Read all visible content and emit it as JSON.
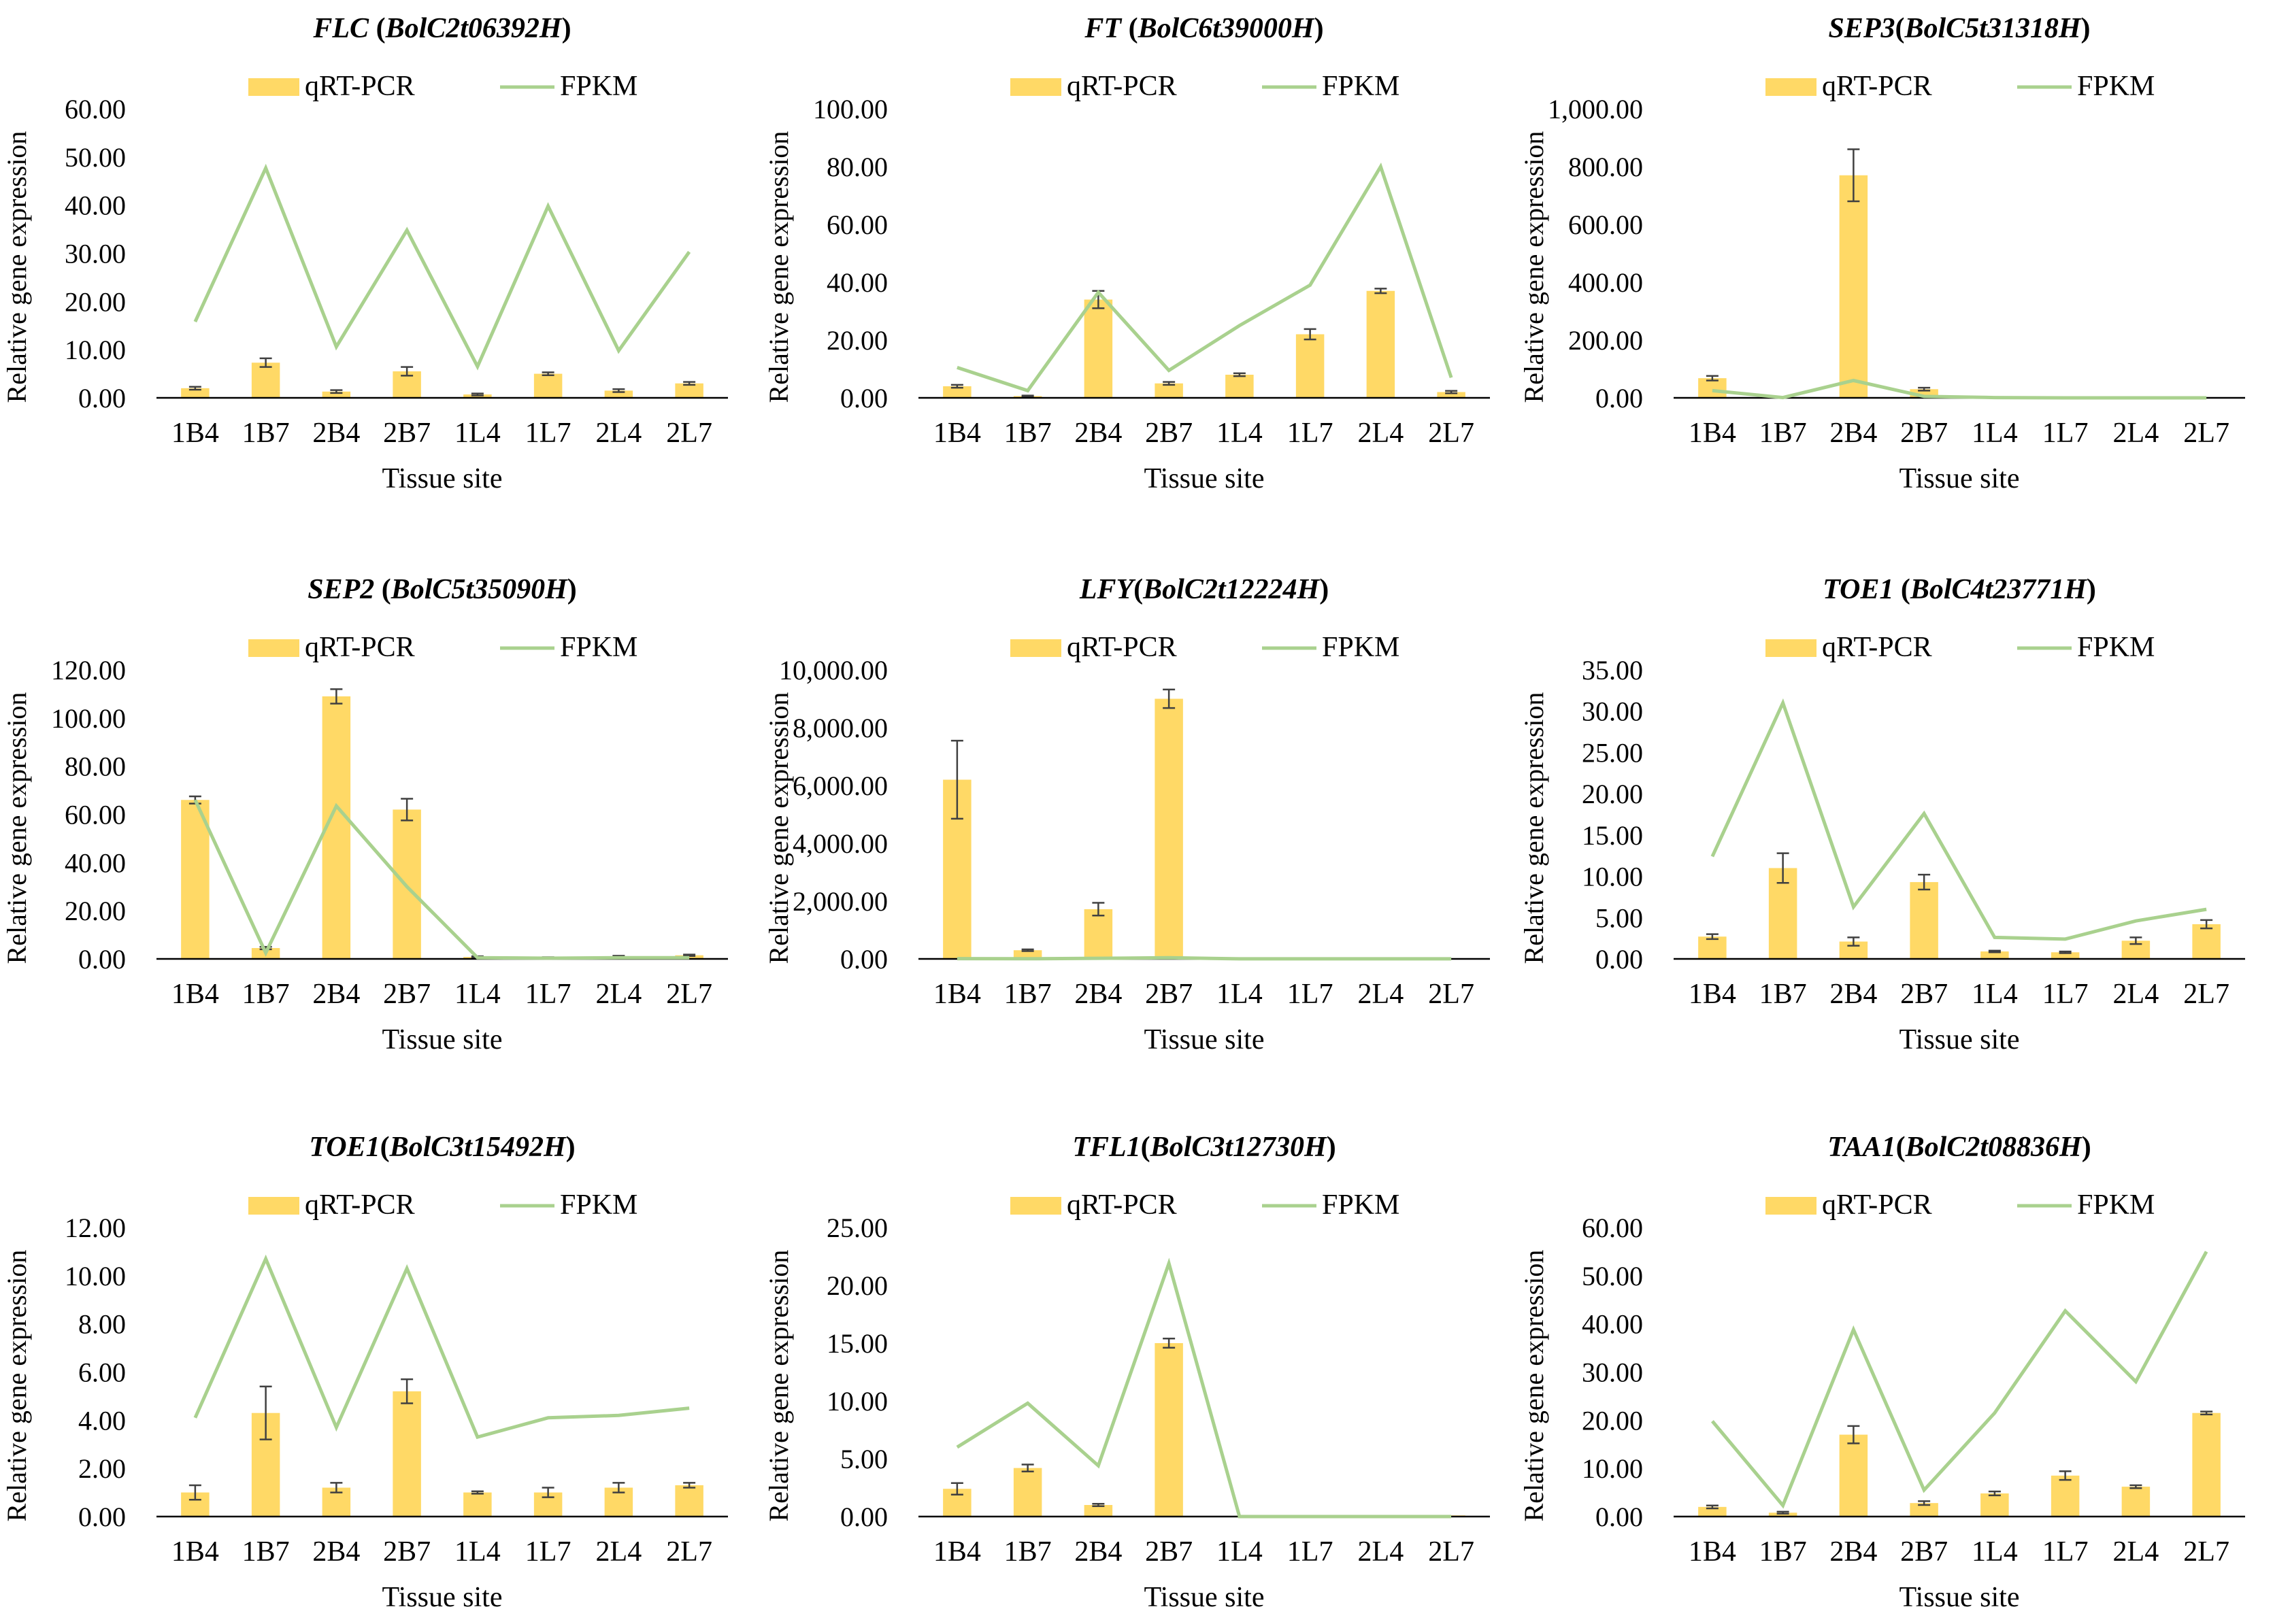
{
  "figure": {
    "bar_color": "#FFD966",
    "line_color": "#A9D18E",
    "error_color": "#404040",
    "common": {
      "categories": [
        "1B4",
        "1B7",
        "2B4",
        "2B7",
        "1L4",
        "1L7",
        "2L4",
        "2L7"
      ],
      "xlabel": "Tissue site",
      "ylabel": "Relative gene expression",
      "legend": [
        "qRT-PCR",
        "FPKM"
      ]
    }
  },
  "chart_data": [
    {
      "type": "bar+line",
      "title_gene": "FLC",
      "title_id": "BolC2t06392H",
      "title_sep": " ",
      "categories": [
        "1B4",
        "1B7",
        "2B4",
        "2B7",
        "1L4",
        "1L7",
        "2L4",
        "2L7"
      ],
      "xlabel": "Tissue site",
      "ylabel": "Relative gene expression",
      "ylim": [
        0,
        60
      ],
      "yticks": [
        0,
        10,
        20,
        30,
        40,
        50,
        60
      ],
      "tick_decimals": 2,
      "series": [
        {
          "name": "qRT-PCR",
          "kind": "bar",
          "values": [
            2.0,
            7.3,
            1.3,
            5.5,
            0.7,
            5.0,
            1.5,
            3.0
          ],
          "errors": [
            0.3,
            0.9,
            0.3,
            0.9,
            0.2,
            0.3,
            0.3,
            0.3
          ]
        },
        {
          "name": "FPKM",
          "kind": "line",
          "values": [
            15.8,
            47.7,
            10.6,
            34.8,
            6.5,
            39.8,
            9.8,
            30.3
          ]
        }
      ]
    },
    {
      "type": "bar+line",
      "title_gene": "FT",
      "title_id": "BolC6t39000H",
      "title_sep": " ",
      "categories": [
        "1B4",
        "1B7",
        "2B4",
        "2B7",
        "1L4",
        "1L7",
        "2L4",
        "2L7"
      ],
      "xlabel": "Tissue site",
      "ylabel": "Relative gene expression",
      "ylim": [
        0,
        100
      ],
      "yticks": [
        0,
        20,
        40,
        60,
        80,
        100
      ],
      "tick_decimals": 2,
      "series": [
        {
          "name": "qRT-PCR",
          "kind": "bar",
          "values": [
            4.0,
            0.6,
            34.0,
            5.0,
            8.0,
            22.0,
            37.0,
            2.0
          ],
          "errors": [
            0.5,
            0.2,
            3.0,
            0.5,
            0.5,
            1.8,
            0.8,
            0.4
          ]
        },
        {
          "name": "FPKM",
          "kind": "line",
          "values": [
            10.5,
            2.5,
            36.5,
            9.5,
            25.0,
            39.0,
            80.0,
            7.0
          ]
        }
      ]
    },
    {
      "type": "bar+line",
      "title_gene": "SEP3",
      "title_id": "BolC5t31318H",
      "title_sep": "",
      "categories": [
        "1B4",
        "1B7",
        "2B4",
        "2B7",
        "1L4",
        "1L7",
        "2L4",
        "2L7"
      ],
      "xlabel": "Tissue site",
      "ylabel": "Relative gene expression",
      "ylim": [
        0,
        1000
      ],
      "yticks": [
        0,
        200,
        400,
        600,
        800,
        1000
      ],
      "tick_decimals": 2,
      "series": [
        {
          "name": "qRT-PCR",
          "kind": "bar",
          "values": [
            68,
            2,
            770,
            30,
            2,
            1,
            1,
            1
          ],
          "errors": [
            8,
            1,
            90,
            5,
            1,
            0,
            0,
            0
          ]
        },
        {
          "name": "FPKM",
          "kind": "line",
          "values": [
            25,
            1,
            60,
            5,
            1,
            0,
            0,
            0
          ]
        }
      ]
    },
    {
      "type": "bar+line",
      "title_gene": "SEP2",
      "title_id": "BolC5t35090H",
      "title_sep": " ",
      "categories": [
        "1B4",
        "1B7",
        "2B4",
        "2B7",
        "1L4",
        "1L7",
        "2L4",
        "2L7"
      ],
      "xlabel": "Tissue site",
      "ylabel": "Relative gene expression",
      "ylim": [
        0,
        120
      ],
      "yticks": [
        0,
        20,
        40,
        60,
        80,
        100,
        120
      ],
      "tick_decimals": 2,
      "series": [
        {
          "name": "qRT-PCR",
          "kind": "bar",
          "values": [
            66.0,
            4.5,
            109.0,
            62.0,
            0.8,
            0.5,
            1.0,
            1.5
          ],
          "errors": [
            1.5,
            0.5,
            3.0,
            4.5,
            0.3,
            0.2,
            0.3,
            0.3
          ]
        },
        {
          "name": "FPKM",
          "kind": "line",
          "values": [
            66.0,
            2.5,
            63.5,
            30.0,
            0.5,
            0.3,
            0.5,
            0.5
          ]
        }
      ]
    },
    {
      "type": "bar+line",
      "title_gene": "LFY",
      "title_id": "BolC2t12224H",
      "title_sep": "",
      "categories": [
        "1B4",
        "1B7",
        "2B4",
        "2B7",
        "1L4",
        "1L7",
        "2L4",
        "2L7"
      ],
      "xlabel": "Tissue site",
      "ylabel": "Relative gene expression",
      "ylim": [
        0,
        10000
      ],
      "yticks": [
        0,
        2000,
        4000,
        6000,
        8000,
        10000
      ],
      "tick_decimals": 2,
      "series": [
        {
          "name": "qRT-PCR",
          "kind": "bar",
          "values": [
            6200,
            300,
            1720,
            9000,
            5,
            5,
            5,
            5
          ],
          "errors": [
            1350,
            30,
            220,
            320,
            0,
            0,
            0,
            0
          ]
        },
        {
          "name": "FPKM",
          "kind": "line",
          "values": [
            10,
            5,
            20,
            40,
            3,
            3,
            3,
            3
          ]
        }
      ]
    },
    {
      "type": "bar+line",
      "title_gene": "TOE1",
      "title_id": "BolC4t23771H",
      "title_sep": " ",
      "categories": [
        "1B4",
        "1B7",
        "2B4",
        "2B7",
        "1L4",
        "1L7",
        "2L4",
        "2L7"
      ],
      "xlabel": "Tissue site",
      "ylabel": "Relative gene expression",
      "ylim": [
        0,
        35
      ],
      "yticks": [
        0,
        5,
        10,
        15,
        20,
        25,
        30,
        35
      ],
      "tick_decimals": 2,
      "series": [
        {
          "name": "qRT-PCR",
          "kind": "bar",
          "values": [
            2.7,
            11.0,
            2.1,
            9.3,
            0.9,
            0.8,
            2.2,
            4.2
          ],
          "errors": [
            0.3,
            1.8,
            0.5,
            0.9,
            0.1,
            0.1,
            0.4,
            0.5
          ]
        },
        {
          "name": "FPKM",
          "kind": "line",
          "values": [
            12.4,
            31.0,
            6.3,
            17.6,
            2.6,
            2.4,
            4.6,
            6.0
          ]
        }
      ]
    },
    {
      "type": "bar+line",
      "title_gene": "TOE1",
      "title_id": "BolC3t15492H",
      "title_sep": "",
      "categories": [
        "1B4",
        "1B7",
        "2B4",
        "2B7",
        "1L4",
        "1L7",
        "2L4",
        "2L7"
      ],
      "xlabel": "Tissue site",
      "ylabel": "Relative gene expression",
      "ylim": [
        0,
        12
      ],
      "yticks": [
        0,
        2,
        4,
        6,
        8,
        10,
        12
      ],
      "tick_decimals": 2,
      "series": [
        {
          "name": "qRT-PCR",
          "kind": "bar",
          "values": [
            1.0,
            4.3,
            1.2,
            5.2,
            1.0,
            1.0,
            1.2,
            1.3
          ],
          "errors": [
            0.3,
            1.1,
            0.2,
            0.5,
            0.05,
            0.2,
            0.2,
            0.1
          ]
        },
        {
          "name": "FPKM",
          "kind": "line",
          "values": [
            4.1,
            10.7,
            3.7,
            10.3,
            3.3,
            4.1,
            4.2,
            4.5
          ]
        }
      ]
    },
    {
      "type": "bar+line",
      "title_gene": "TFL1",
      "title_id": "BolC3t12730H",
      "title_sep": "",
      "categories": [
        "1B4",
        "1B7",
        "2B4",
        "2B7",
        "1L4",
        "1L7",
        "2L4",
        "2L7"
      ],
      "xlabel": "Tissue site",
      "ylabel": "Relative gene expression",
      "ylim": [
        0,
        25
      ],
      "yticks": [
        0,
        5,
        10,
        15,
        20,
        25
      ],
      "tick_decimals": 2,
      "series": [
        {
          "name": "qRT-PCR",
          "kind": "bar",
          "values": [
            2.4,
            4.2,
            1.0,
            15.0,
            0.0,
            0.0,
            0.0,
            0.1
          ],
          "errors": [
            0.5,
            0.3,
            0.1,
            0.4,
            0,
            0,
            0,
            0
          ]
        },
        {
          "name": "FPKM",
          "kind": "line",
          "values": [
            6.0,
            9.8,
            4.4,
            21.9,
            0.0,
            0.0,
            0.0,
            0.0
          ]
        }
      ]
    },
    {
      "type": "bar+line",
      "title_gene": "TAA1",
      "title_id": "BolC2t08836H",
      "title_sep": "",
      "categories": [
        "1B4",
        "1B7",
        "2B4",
        "2B7",
        "1L4",
        "1L7",
        "2L4",
        "2L7"
      ],
      "xlabel": "Tissue site",
      "ylabel": "Relative gene expression",
      "ylim": [
        0,
        60
      ],
      "yticks": [
        0,
        10,
        20,
        30,
        40,
        50,
        60
      ],
      "tick_decimals": 2,
      "series": [
        {
          "name": "qRT-PCR",
          "kind": "bar",
          "values": [
            2.0,
            0.8,
            17.0,
            2.8,
            4.8,
            8.5,
            6.2,
            21.5
          ],
          "errors": [
            0.3,
            0.2,
            1.8,
            0.4,
            0.4,
            0.9,
            0.3,
            0.3
          ]
        },
        {
          "name": "FPKM",
          "kind": "line",
          "values": [
            19.8,
            2.3,
            38.8,
            5.5,
            21.5,
            42.7,
            28.0,
            55.0
          ]
        }
      ]
    }
  ]
}
